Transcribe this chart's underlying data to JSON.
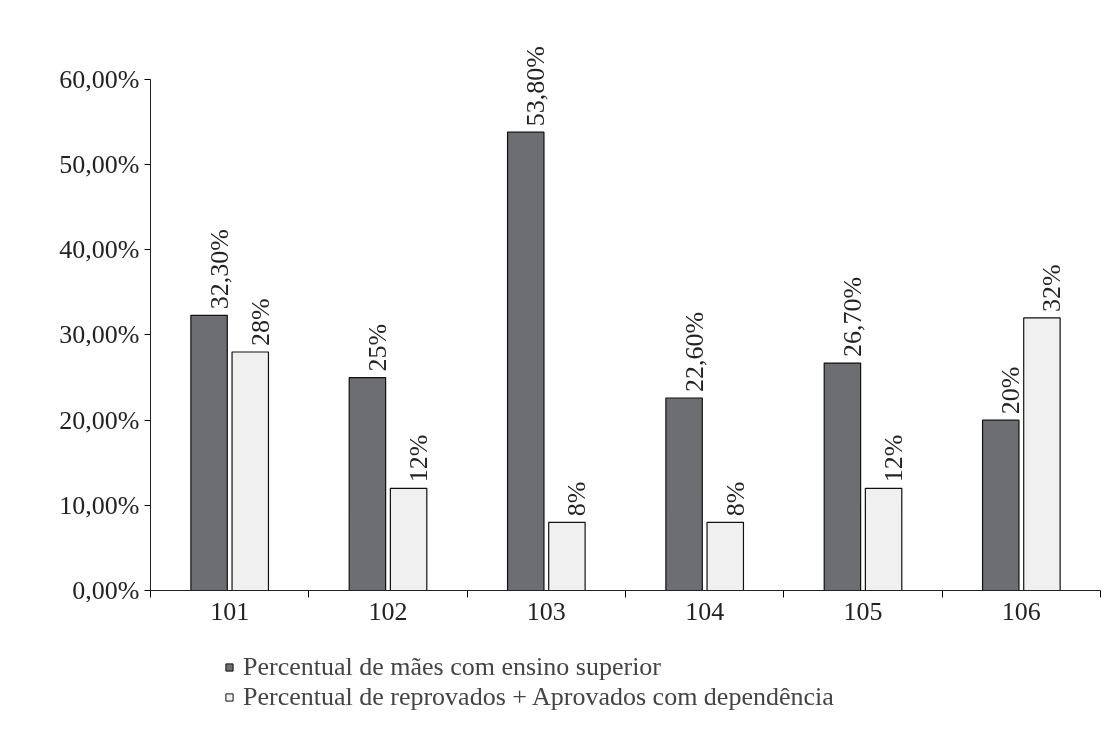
{
  "chart_data": {
    "type": "bar",
    "categories": [
      "101",
      "102",
      "103",
      "104",
      "105",
      "106"
    ],
    "series": [
      {
        "name": "Percentual de mães com ensino superior",
        "color": "#6d6e72",
        "values": [
          32.3,
          25,
          53.8,
          22.6,
          26.7,
          20
        ],
        "value_labels": [
          "32,30%",
          "25%",
          "53,80%",
          "22,60%",
          "26,70%",
          "20%"
        ]
      },
      {
        "name": "Percentual de reprovados + Aprovados com dependência",
        "color": "#f0f0f0",
        "values": [
          28,
          12,
          8,
          8,
          12,
          32
        ],
        "value_labels": [
          "28%",
          "12%",
          "8%",
          "8%",
          "12%",
          "32%"
        ]
      }
    ],
    "ylim": [
      0,
      60
    ],
    "yticks": [
      {
        "value": 0,
        "label": "0,00%"
      },
      {
        "value": 10,
        "label": "10,00%"
      },
      {
        "value": 20,
        "label": "20,00%"
      },
      {
        "value": 30,
        "label": "30,00%"
      },
      {
        "value": 40,
        "label": "40,00%"
      },
      {
        "value": 50,
        "label": "50,00%"
      },
      {
        "value": 60,
        "label": "60,00%"
      }
    ],
    "grid": false,
    "legend": "bottom"
  }
}
